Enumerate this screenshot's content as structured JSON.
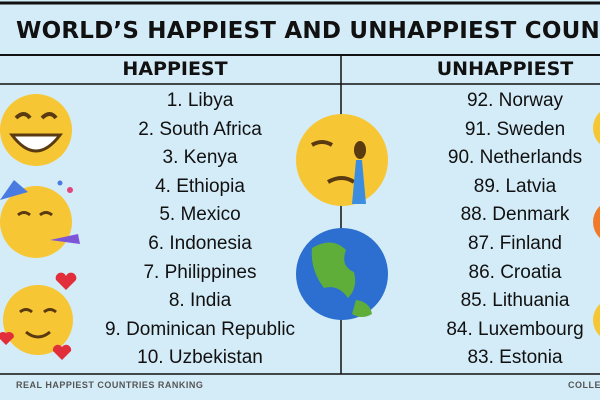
{
  "header": {
    "title": "WORLD’S HAPPIEST AND UNHAPPIEST COUNT"
  },
  "happiest": {
    "heading": "HAPPIEST",
    "items": [
      "1. Libya",
      "2. South Africa",
      "3. Kenya",
      "4. Ethiopia",
      "5. Mexico",
      "6. Indonesia",
      "7. Philippines",
      "8. India",
      "9. Dominican Republic",
      "10. Uzbekistan"
    ]
  },
  "unhappiest": {
    "heading": "UNHAPPIEST",
    "items": [
      "92. Norway",
      "91. Sweden",
      "90. Netherlands",
      "89. Latvia",
      "88. Denmark",
      "87. Finland",
      "86. Croatia",
      "85. Lithuania",
      "84. Luxembourg",
      "83. Estonia"
    ]
  },
  "footer": {
    "left": "REAL HAPPIEST COUNTRIES RANKING",
    "right": "COLLE"
  }
}
